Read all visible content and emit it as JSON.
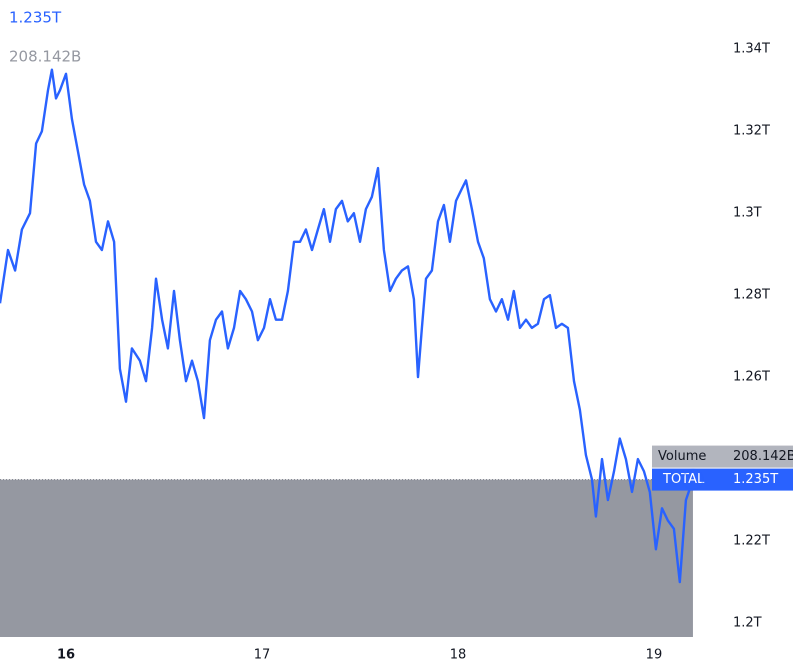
{
  "chart_data": {
    "type": "line",
    "price_label": "1.235T",
    "volume_name": "Volume",
    "volume_label": "208.142B",
    "x": [
      15.663,
      15.704,
      15.74,
      15.775,
      15.816,
      15.847,
      15.877,
      15.908,
      15.928,
      15.949,
      15.969,
      16.0,
      16.03,
      16.061,
      16.092,
      16.122,
      16.153,
      16.183,
      16.214,
      16.245,
      16.275,
      16.306,
      16.336,
      16.377,
      16.408,
      16.439,
      16.459,
      16.49,
      16.52,
      16.551,
      16.581,
      16.612,
      16.643,
      16.673,
      16.704,
      16.734,
      16.765,
      16.796,
      16.826,
      16.857,
      16.888,
      16.918,
      16.949,
      16.979,
      17.01,
      17.041,
      17.071,
      17.102,
      17.132,
      17.163,
      17.194,
      17.224,
      17.255,
      17.285,
      17.316,
      17.347,
      17.377,
      17.408,
      17.438,
      17.469,
      17.5,
      17.53,
      17.561,
      17.592,
      17.622,
      17.653,
      17.683,
      17.714,
      17.745,
      17.775,
      17.796,
      17.816,
      17.837,
      17.867,
      17.898,
      17.928,
      17.959,
      17.99,
      18.02,
      18.041,
      18.071,
      18.102,
      18.132,
      18.163,
      18.194,
      18.224,
      18.255,
      18.285,
      18.316,
      18.347,
      18.377,
      18.408,
      18.439,
      18.469,
      18.5,
      18.53,
      18.561,
      18.592,
      18.622,
      18.653,
      18.684,
      18.704,
      18.735,
      18.765,
      18.796,
      18.826,
      18.857,
      18.888,
      18.918,
      18.949,
      18.979,
      19.01,
      19.041,
      19.071,
      19.102,
      19.132,
      19.163,
      19.199
    ],
    "series": [
      {
        "name": "TOTAL",
        "color": "#2962ff",
        "values": [
          1.278,
          1.291,
          1.286,
          1.296,
          1.3,
          1.317,
          1.32,
          1.33,
          1.335,
          1.328,
          1.33,
          1.334,
          1.323,
          1.315,
          1.307,
          1.303,
          1.293,
          1.291,
          1.298,
          1.293,
          1.262,
          1.254,
          1.267,
          1.264,
          1.259,
          1.272,
          1.284,
          1.274,
          1.267,
          1.281,
          1.269,
          1.259,
          1.264,
          1.259,
          1.25,
          1.269,
          1.274,
          1.276,
          1.267,
          1.272,
          1.281,
          1.279,
          1.276,
          1.269,
          1.272,
          1.279,
          1.274,
          1.274,
          1.281,
          1.293,
          1.293,
          1.296,
          1.291,
          1.296,
          1.301,
          1.293,
          1.301,
          1.303,
          1.298,
          1.3,
          1.293,
          1.301,
          1.304,
          1.311,
          1.291,
          1.281,
          1.284,
          1.286,
          1.287,
          1.279,
          1.26,
          1.272,
          1.284,
          1.286,
          1.298,
          1.302,
          1.293,
          1.303,
          1.306,
          1.308,
          1.301,
          1.293,
          1.289,
          1.279,
          1.276,
          1.279,
          1.274,
          1.281,
          1.272,
          1.274,
          1.272,
          1.273,
          1.279,
          1.28,
          1.272,
          1.273,
          1.272,
          1.259,
          1.252,
          1.241,
          1.235,
          1.226,
          1.24,
          1.23,
          1.237,
          1.245,
          1.24,
          1.232,
          1.24,
          1.237,
          1.232,
          1.218,
          1.228,
          1.225,
          1.223,
          1.21,
          1.23,
          1.235
        ]
      }
    ],
    "xlim": [
      15.663,
      19.235
    ],
    "xticks": [
      16,
      17,
      18,
      19
    ],
    "ylim": [
      1.1966,
      1.352
    ],
    "yticks": [
      {
        "value": 1.34,
        "label": "1.34T"
      },
      {
        "value": 1.32,
        "label": "1.32T"
      },
      {
        "value": 1.3,
        "label": "1.3T"
      },
      {
        "value": 1.28,
        "label": "1.28T"
      },
      {
        "value": 1.26,
        "label": "1.26T"
      },
      {
        "value": 1.22,
        "label": "1.22T"
      },
      {
        "value": 1.2,
        "label": "1.2T"
      }
    ]
  }
}
